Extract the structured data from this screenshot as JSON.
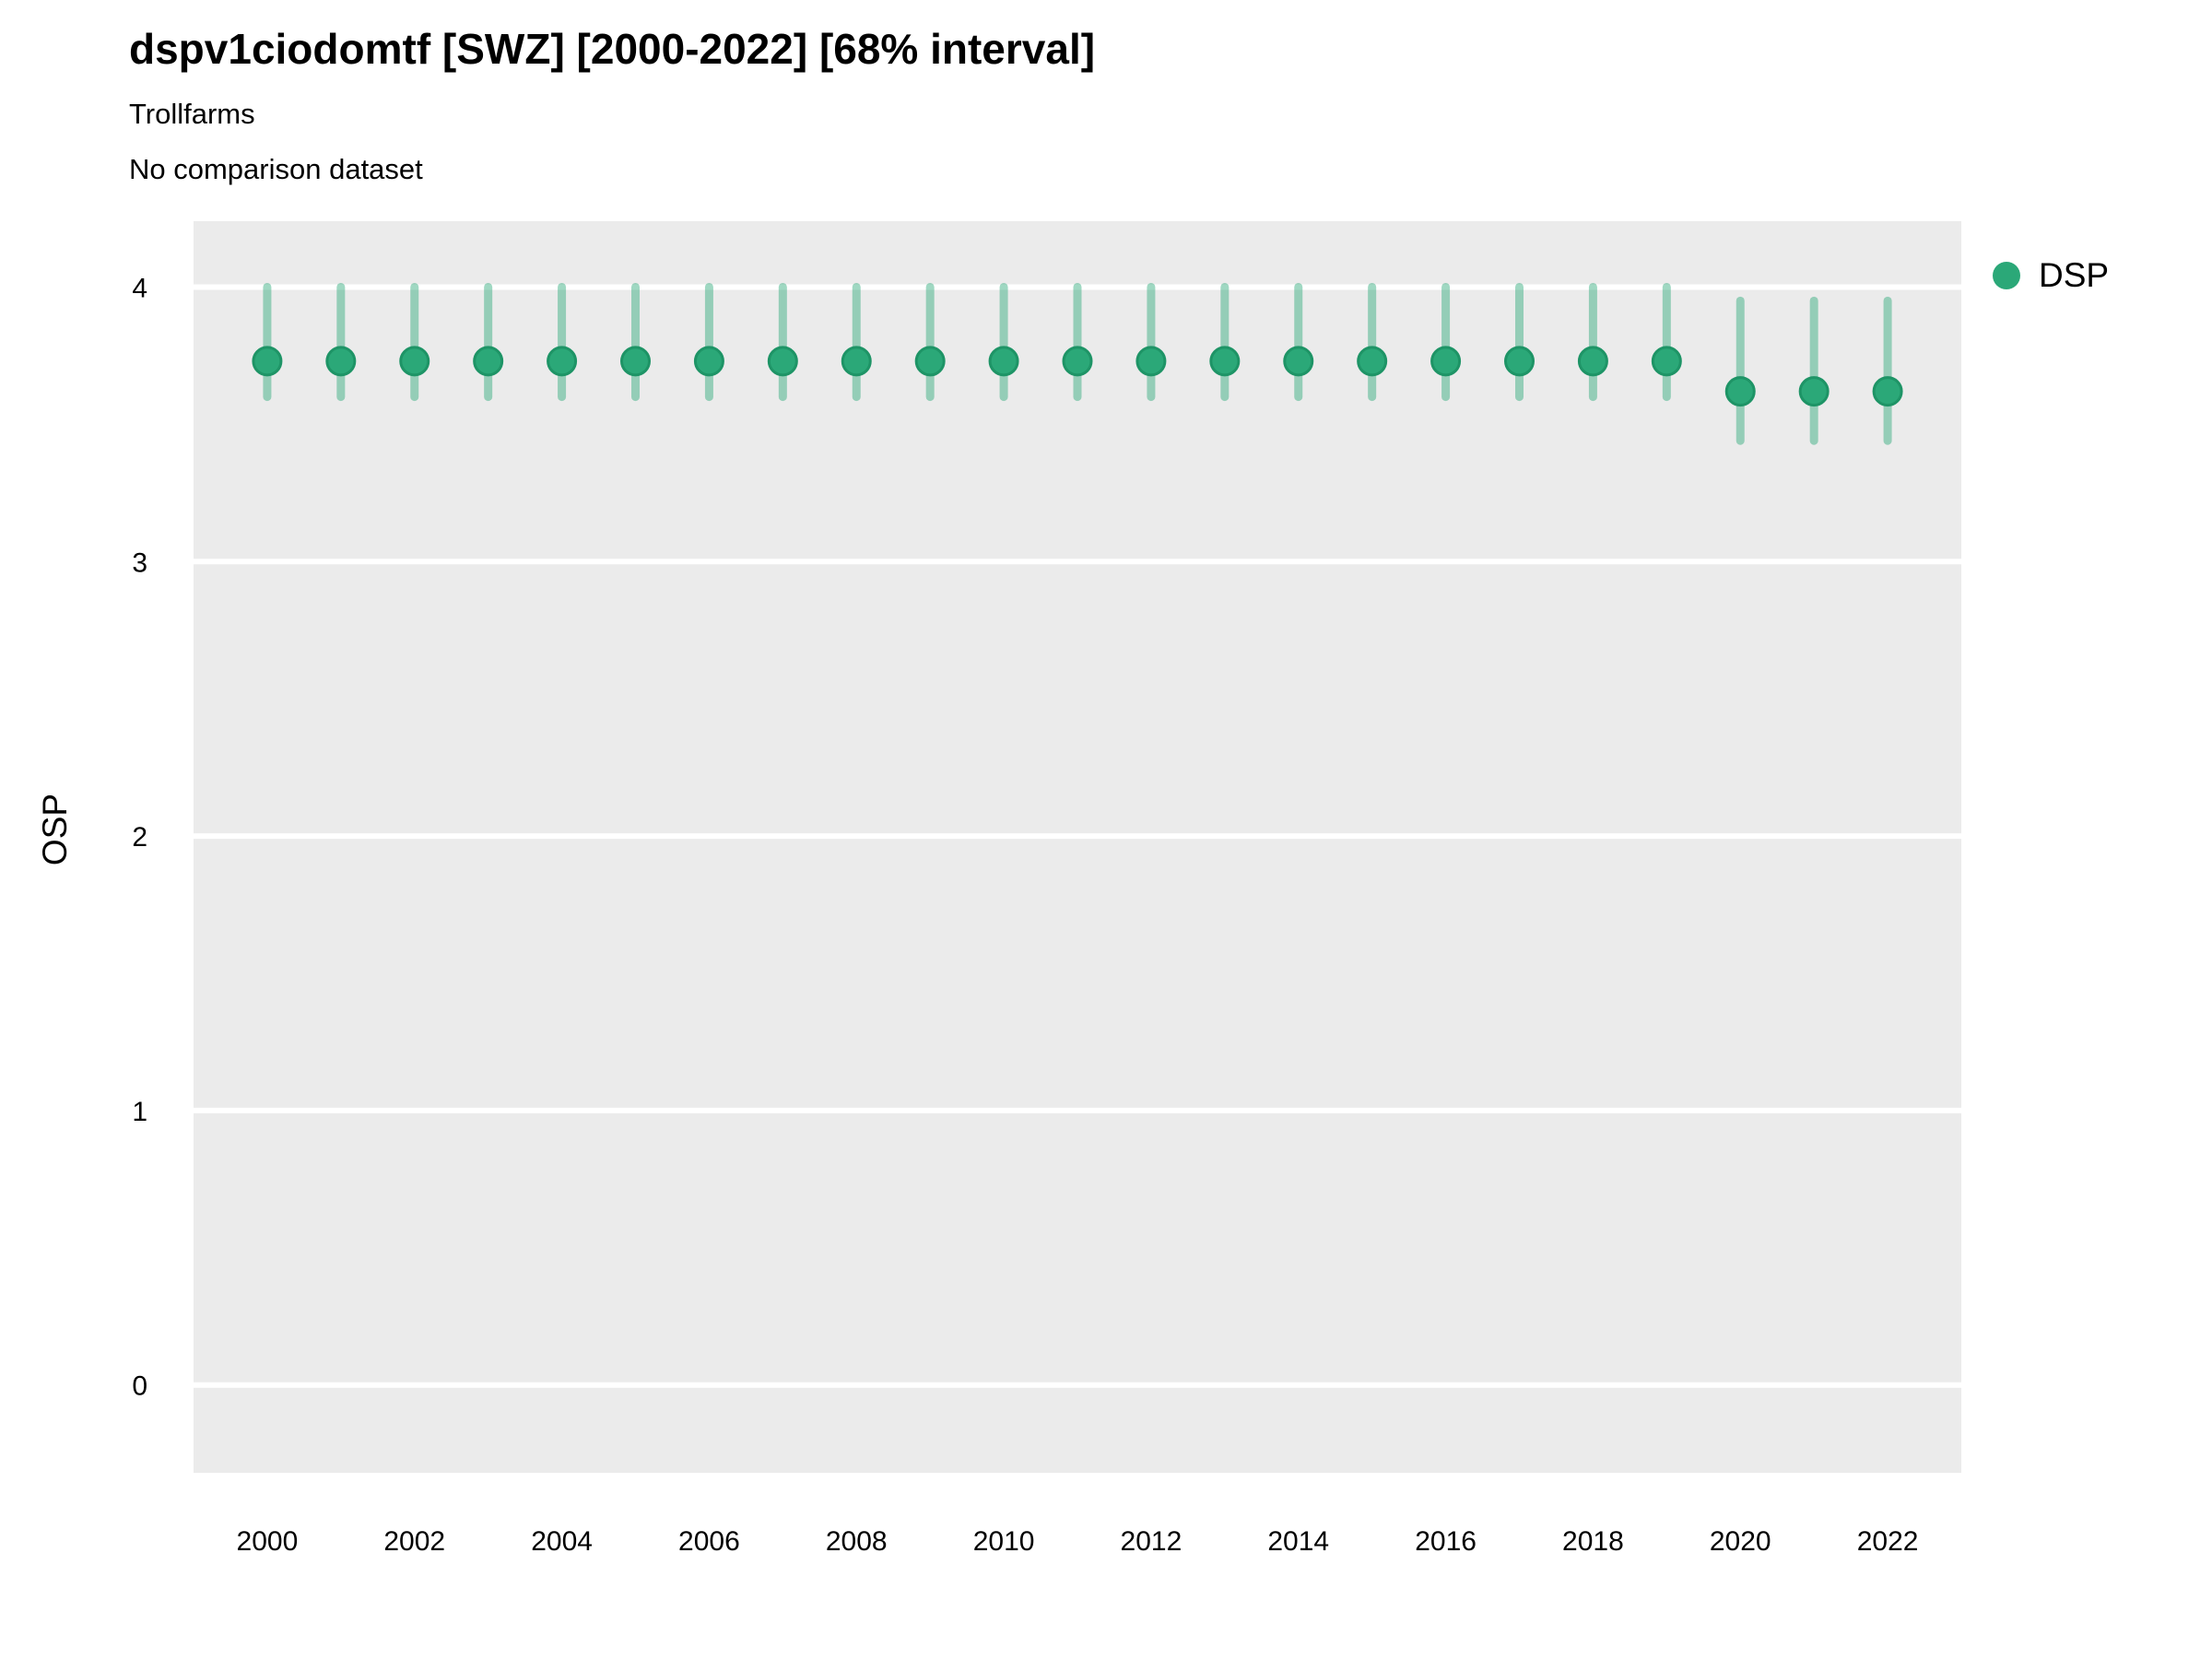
{
  "header": {
    "title": "dspv1ciodomtf [SWZ] [2000-2022] [68% interval]",
    "subtitle": "Trollfarms",
    "comparison_note": "No comparison dataset"
  },
  "legend": {
    "position": "right",
    "items": [
      {
        "label": "DSP",
        "marker": "circle",
        "color": "#2BA878"
      }
    ]
  },
  "colors": {
    "panel_background": "#EBEBEB",
    "gridline": "#FFFFFF",
    "point_fill": "#2BA878",
    "point_stroke": "#1E9466",
    "interval_bar": "rgba(43,168,120,0.45)",
    "text": "#000000"
  },
  "chart_data": {
    "type": "scatter",
    "title": "dspv1ciodomtf [SWZ] [2000-2022] [68% interval]",
    "subtitle": "Trollfarms",
    "note": "No comparison dataset",
    "interval": "68%",
    "xlabel": "",
    "ylabel": "OSP",
    "xlim": [
      1999,
      2023
    ],
    "ylim": [
      -0.32,
      4.24
    ],
    "x_ticks": [
      2000,
      2002,
      2004,
      2006,
      2008,
      2010,
      2012,
      2014,
      2016,
      2018,
      2020,
      2022
    ],
    "y_ticks": [
      0,
      1,
      2,
      3,
      4
    ],
    "grid": "horizontal white major gridlines on gray panel",
    "legend_position": "right",
    "series": [
      {
        "name": "DSP",
        "x": [
          2000,
          2001,
          2002,
          2003,
          2004,
          2005,
          2006,
          2007,
          2008,
          2009,
          2010,
          2011,
          2012,
          2013,
          2014,
          2015,
          2016,
          2017,
          2018,
          2019,
          2020,
          2021,
          2022
        ],
        "y": [
          3.73,
          3.73,
          3.73,
          3.73,
          3.73,
          3.73,
          3.73,
          3.73,
          3.73,
          3.73,
          3.73,
          3.73,
          3.73,
          3.73,
          3.73,
          3.73,
          3.73,
          3.73,
          3.73,
          3.73,
          3.62,
          3.62,
          3.62
        ],
        "y_lower": [
          3.6,
          3.6,
          3.6,
          3.6,
          3.6,
          3.6,
          3.6,
          3.6,
          3.6,
          3.6,
          3.6,
          3.6,
          3.6,
          3.6,
          3.6,
          3.6,
          3.6,
          3.6,
          3.6,
          3.6,
          3.44,
          3.44,
          3.44
        ],
        "y_upper": [
          4.0,
          4.0,
          4.0,
          4.0,
          4.0,
          4.0,
          4.0,
          4.0,
          4.0,
          4.0,
          4.0,
          4.0,
          4.0,
          4.0,
          4.0,
          4.0,
          4.0,
          4.0,
          4.0,
          4.0,
          3.95,
          3.95,
          3.95
        ]
      }
    ]
  }
}
